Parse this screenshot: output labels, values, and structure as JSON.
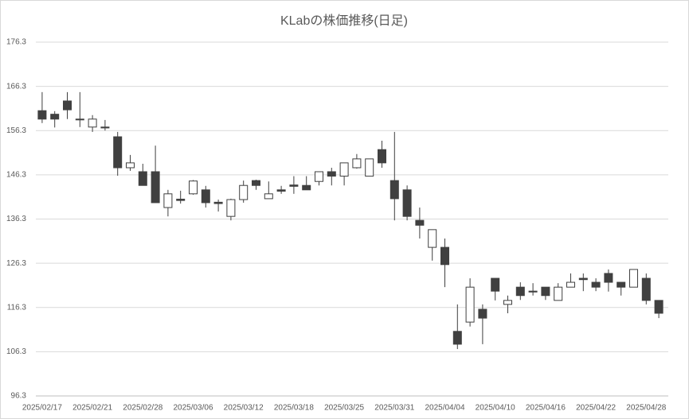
{
  "chart_data": {
    "type": "candlestick",
    "title": "KLabの株価推移(日足)",
    "categories": [
      "2025/02/17",
      null,
      null,
      null,
      "2025/02/21",
      null,
      null,
      null,
      "2025/02/28",
      null,
      null,
      null,
      "2025/03/06",
      null,
      null,
      null,
      "2025/03/12",
      null,
      null,
      null,
      "2025/03/18",
      null,
      null,
      null,
      "2025/03/25",
      null,
      null,
      null,
      "2025/03/31",
      null,
      null,
      null,
      "2025/04/04",
      null,
      null,
      null,
      "2025/04/10",
      null,
      null,
      null,
      "2025/04/16",
      null,
      null,
      null,
      "2025/04/22",
      null,
      null,
      null,
      "2025/04/28",
      null
    ],
    "open": [
      160.8,
      160.0,
      163.0,
      158.9,
      157.1,
      157.1,
      154.9,
      147.9,
      147.0,
      147.0,
      138.9,
      140.8,
      142.0,
      142.9,
      140.1,
      136.9,
      140.7,
      145.0,
      140.9,
      142.9,
      144.0,
      143.9,
      144.8,
      147.0,
      146.0,
      147.9,
      146.0,
      152.0,
      145.0,
      142.9,
      136.0,
      129.9,
      129.9,
      110.9,
      113.0,
      115.9,
      122.9,
      117.0,
      120.9,
      120.0,
      120.9,
      117.9,
      120.9,
      122.9,
      122.0,
      124.0,
      122.0,
      120.9,
      122.9,
      117.9
    ],
    "high": [
      165.0,
      160.7,
      165.0,
      165.0,
      159.8,
      158.7,
      156.0,
      150.8,
      148.8,
      152.9,
      142.9,
      142.7,
      145.1,
      143.8,
      140.7,
      140.9,
      145.0,
      145.2,
      144.8,
      143.8,
      146.0,
      146.0,
      147.0,
      147.9,
      149.0,
      151.0,
      149.9,
      154.0,
      156.0,
      143.9,
      138.9,
      133.9,
      131.9,
      117.0,
      122.9,
      117.0,
      122.9,
      119.0,
      122.0,
      121.8,
      120.9,
      121.8,
      124.0,
      124.0,
      122.9,
      124.9,
      122.0,
      124.9,
      124.0,
      117.9
    ],
    "low": [
      158.0,
      157.0,
      158.9,
      157.1,
      156.0,
      156.3,
      146.1,
      147.2,
      143.9,
      140.0,
      136.9,
      139.8,
      141.8,
      138.9,
      138.0,
      136.0,
      140.0,
      142.9,
      140.9,
      142.0,
      142.0,
      142.9,
      143.9,
      143.9,
      143.9,
      147.7,
      146.0,
      147.9,
      136.0,
      136.0,
      131.9,
      126.9,
      120.9,
      106.9,
      112.0,
      108.0,
      117.9,
      115.0,
      118.0,
      119.0,
      118.0,
      117.9,
      120.9,
      120.0,
      120.0,
      119.9,
      119.0,
      120.9,
      117.0,
      113.9
    ],
    "close": [
      158.9,
      158.9,
      161.0,
      158.8,
      158.9,
      156.9,
      147.9,
      149.0,
      143.9,
      140.0,
      142.0,
      140.5,
      144.9,
      140.0,
      139.8,
      140.7,
      143.9,
      143.9,
      142.0,
      142.6,
      143.7,
      142.9,
      147.0,
      146.0,
      149.0,
      149.9,
      149.9,
      149.0,
      140.9,
      136.9,
      134.9,
      133.9,
      126.0,
      108.0,
      120.9,
      113.9,
      120.0,
      117.9,
      119.0,
      119.8,
      119.0,
      120.9,
      122.0,
      122.6,
      120.9,
      122.0,
      120.9,
      124.9,
      117.9,
      115.0
    ],
    "up_color": "#ffffff",
    "down_color": "#404040",
    "edge_color": "#404040",
    "ylim": [
      96.3,
      176.3
    ],
    "yticks": [
      96.3,
      106.3,
      116.3,
      126.3,
      136.3,
      146.3,
      156.3,
      166.3,
      176.3
    ],
    "grid": true
  }
}
